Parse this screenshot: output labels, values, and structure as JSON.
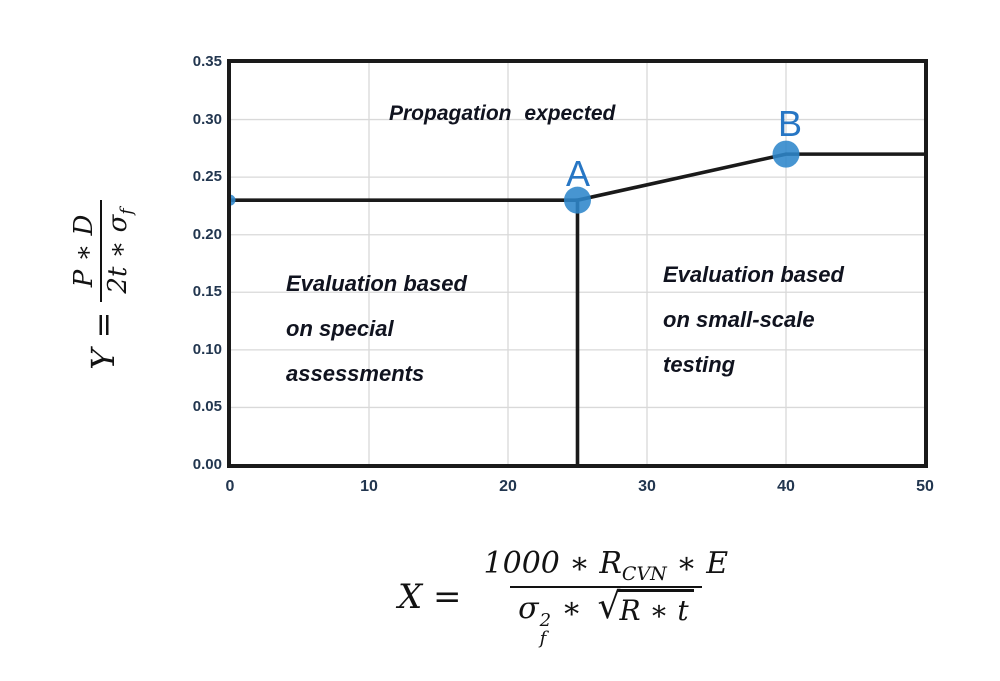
{
  "chart_data": {
    "type": "line",
    "title": "",
    "ylabel": "Y = (P ∗ D) / (2t ∗ σ_f)",
    "xlabel": "X = (1000 ∗ R_CVN ∗ E) / (σ_f² ∗ √(R ∗ t))",
    "xlim": [
      0,
      50
    ],
    "ylim": [
      0,
      0.35
    ],
    "x_ticks": [
      "0",
      "10",
      "20",
      "30",
      "40",
      "50"
    ],
    "y_ticks": [
      "0.00",
      "0.05",
      "0.10",
      "0.15",
      "0.20",
      "0.25",
      "0.30",
      "0.35"
    ],
    "grid": true,
    "grid_x_values": [
      10,
      20,
      30,
      40
    ],
    "grid_y_values": [
      0.05,
      0.1,
      0.15,
      0.2,
      0.25,
      0.3
    ],
    "legend": "none",
    "series": [
      {
        "name": "assessment-boundary-curve",
        "points": [
          [
            0,
            0.23
          ],
          [
            25,
            0.23
          ],
          [
            40,
            0.27
          ],
          [
            50,
            0.27
          ]
        ],
        "color": "#1a1a1a"
      },
      {
        "name": "vertical-boundary-at-x25",
        "points": [
          [
            25,
            0
          ],
          [
            25,
            0.23
          ]
        ],
        "color": "#1a1a1a"
      }
    ],
    "markers": [
      {
        "label": "A",
        "x": 25,
        "y": 0.23,
        "size": "large"
      },
      {
        "label": "B",
        "x": 40,
        "y": 0.27,
        "size": "large"
      },
      {
        "label": "",
        "x": 0,
        "y": 0.23,
        "size": "small"
      }
    ],
    "marker_color": "#2e86cb",
    "annotations": [
      {
        "name": "propagation",
        "text": "Propagation expected"
      },
      {
        "name": "special",
        "text": "Evaluation based\non special\nassessments"
      },
      {
        "name": "small-scale",
        "text": "Evaluation based\non small-scale\ntesting"
      }
    ]
  },
  "point_labels": {
    "a": "A",
    "b": "B"
  },
  "y_formula": {
    "lhs": "Y =",
    "numerator": "P ∗ D",
    "denominator_main": "2t ∗ σ",
    "denominator_sub": "f"
  },
  "x_formula": {
    "lhs": "X =",
    "num_pre": "1000 ∗ R",
    "num_sub": "CVN",
    "num_post": " ∗ E",
    "den_sigma": "σ",
    "den_sup": "2",
    "den_sub": "f",
    "den_ast": " ∗ ",
    "sqrt_sign": "√",
    "radicand": "R ∗ t"
  },
  "colors": {
    "line": "#1a1a1a",
    "grid": "#d9d9d9",
    "marker_blue": "#2e86cb",
    "label_blue": "#2776c4",
    "tick_text": "#22364f",
    "annotation_text": "#10131f"
  }
}
